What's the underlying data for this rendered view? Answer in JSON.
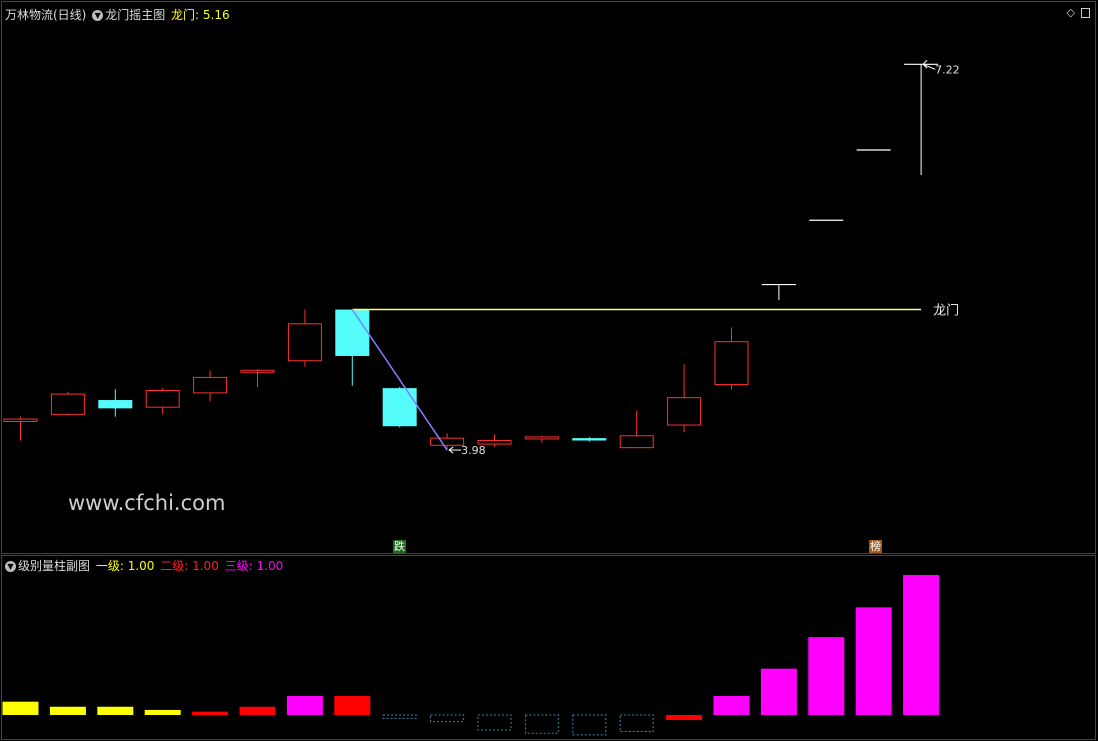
{
  "main_header": {
    "stock": "万林物流(日线)",
    "indicator": "龙门摇主图",
    "value_label": "龙门: 5.16"
  },
  "sub_header": {
    "title": "级别量柱副图",
    "l1": "一级: 1.00",
    "l2": "二级: 1.00",
    "l3": "三级: 1.00"
  },
  "watermark": "www.cfchi.com",
  "annotations": {
    "high_label": "7.22",
    "low_label": "3.98",
    "longmen_label": "龙门",
    "die_tag": "跌",
    "bang_tag": "榜"
  },
  "colors": {
    "up": "#ff3030",
    "down": "#54fcfc",
    "level1": "#ffff00",
    "level2": "#ff0000",
    "level3": "#ff00ff",
    "longmen_line": "#ffff66",
    "trend_line": "#8080ff"
  },
  "chart_data": [
    {
      "type": "candlestick",
      "title": "龙门摇主图",
      "longmen": 5.16,
      "high_marker": 7.22,
      "low_marker": 3.98,
      "ylim": [
        3.3,
        7.55
      ],
      "candles": [
        {
          "o": 4.24,
          "c": 4.22,
          "h": 4.26,
          "l": 4.06,
          "dir": "up"
        },
        {
          "o": 4.28,
          "c": 4.45,
          "h": 4.47,
          "l": 4.27,
          "dir": "up"
        },
        {
          "o": 4.4,
          "c": 4.33,
          "h": 4.49,
          "l": 4.26,
          "dir": "down"
        },
        {
          "o": 4.34,
          "c": 4.48,
          "h": 4.5,
          "l": 4.28,
          "dir": "up"
        },
        {
          "o": 4.46,
          "c": 4.59,
          "h": 4.65,
          "l": 4.39,
          "dir": "up"
        },
        {
          "o": 4.64,
          "c": 4.65,
          "h": 4.66,
          "l": 4.51,
          "dir": "up"
        },
        {
          "o": 4.73,
          "c": 5.04,
          "h": 5.16,
          "l": 4.68,
          "dir": "up"
        },
        {
          "o": 5.16,
          "c": 4.77,
          "h": 5.16,
          "l": 4.52,
          "dir": "down"
        },
        {
          "o": 4.5,
          "c": 4.18,
          "h": 4.51,
          "l": 4.17,
          "dir": "down"
        },
        {
          "o": 4.02,
          "c": 4.08,
          "h": 4.12,
          "l": 3.98,
          "dir": "up"
        },
        {
          "o": 4.03,
          "c": 4.06,
          "h": 4.11,
          "l": 4.01,
          "dir": "up"
        },
        {
          "o": 4.08,
          "c": 4.09,
          "h": 4.1,
          "l": 4.04,
          "dir": "up"
        },
        {
          "o": 4.08,
          "c": 4.06,
          "h": 4.09,
          "l": 4.05,
          "dir": "down"
        },
        {
          "o": 4.0,
          "c": 4.1,
          "h": 4.31,
          "l": 4.0,
          "dir": "up"
        },
        {
          "o": 4.19,
          "c": 4.42,
          "h": 4.7,
          "l": 4.13,
          "dir": "up"
        },
        {
          "o": 4.53,
          "c": 4.89,
          "h": 5.01,
          "l": 4.49,
          "dir": "up"
        },
        {
          "o": 5.37,
          "c": 5.37,
          "h": 5.37,
          "l": 5.24,
          "dir": "up"
        },
        {
          "o": 5.91,
          "c": 5.91,
          "h": 5.91,
          "l": 5.91,
          "dir": "up"
        },
        {
          "o": 6.5,
          "c": 6.5,
          "h": 6.5,
          "l": 6.5,
          "dir": "up"
        },
        {
          "o": 7.22,
          "c": 7.22,
          "h": 7.22,
          "l": 6.29,
          "dir": "up"
        }
      ]
    },
    {
      "type": "bar",
      "title": "级别量柱副图",
      "ylim": [
        0,
        100
      ],
      "bars": [
        {
          "v": 9.5,
          "cls": "level1"
        },
        {
          "v": 5.9,
          "cls": "level1"
        },
        {
          "v": 5.9,
          "cls": "level1"
        },
        {
          "v": 3.6,
          "cls": "level1"
        },
        {
          "v": 2.4,
          "cls": "level2"
        },
        {
          "v": 5.9,
          "cls": "level2"
        },
        {
          "v": 13.6,
          "cls": "level3"
        },
        {
          "v": 13.6,
          "cls": "level2"
        },
        {
          "v": -2.4,
          "cls": "dash"
        },
        {
          "v": -4.7,
          "cls": "dash"
        },
        {
          "v": -10.7,
          "cls": "dash"
        },
        {
          "v": -13.0,
          "cls": "dash"
        },
        {
          "v": -14.2,
          "cls": "dash"
        },
        {
          "v": -11.8,
          "cls": "dash"
        },
        {
          "v": -3.6,
          "cls": "level2"
        },
        {
          "v": 13.6,
          "cls": "level3"
        },
        {
          "v": 33.1,
          "cls": "level3"
        },
        {
          "v": 55.6,
          "cls": "level3"
        },
        {
          "v": 76.9,
          "cls": "level3"
        },
        {
          "v": 100,
          "cls": "level3"
        }
      ]
    }
  ]
}
